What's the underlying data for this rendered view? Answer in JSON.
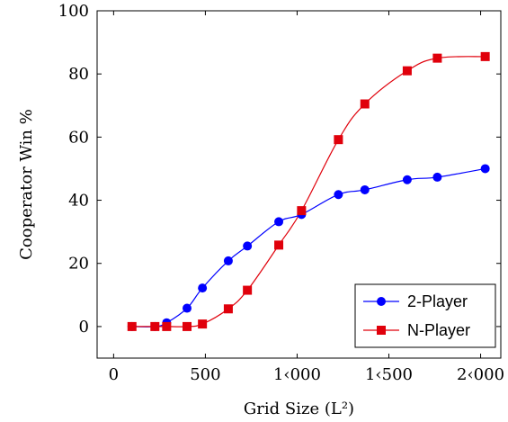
{
  "chart_data": {
    "type": "line",
    "xlabel": "Grid Size (L²)",
    "ylabel": "Cooperator Win %",
    "xlim": [
      -90,
      2110
    ],
    "ylim": [
      -10,
      100
    ],
    "x_ticks": [
      0,
      500,
      1000,
      1500,
      2000
    ],
    "x_tick_labels": [
      "0",
      "500",
      "1‹000",
      "1‹500",
      "2‹000"
    ],
    "y_ticks": [
      0,
      20,
      40,
      60,
      80,
      100
    ],
    "y_tick_labels": [
      "0",
      "20",
      "40",
      "60",
      "80",
      "100"
    ],
    "grid": false,
    "legend_position": "bottom-right",
    "series": [
      {
        "name": "2-Player",
        "color": "#0000ff",
        "marker": "circle",
        "x": [
          100,
          225,
          289,
          400,
          484,
          625,
          729,
          900,
          1024,
          1225,
          1369,
          1600,
          1764,
          2025
        ],
        "y": [
          0,
          0,
          1.2,
          5.8,
          12.2,
          20.8,
          25.5,
          33.2,
          35.5,
          41.8,
          43.3,
          46.5,
          47.3,
          50
        ]
      },
      {
        "name": "N-Player",
        "color": "#e0000b",
        "marker": "square",
        "x": [
          100,
          225,
          289,
          400,
          484,
          625,
          729,
          900,
          1024,
          1225,
          1369,
          1600,
          1764,
          2025
        ],
        "y": [
          0,
          0,
          0,
          0,
          0.8,
          5.6,
          11.5,
          25.8,
          36.7,
          59.2,
          70.5,
          81,
          85,
          85.5
        ]
      }
    ]
  }
}
